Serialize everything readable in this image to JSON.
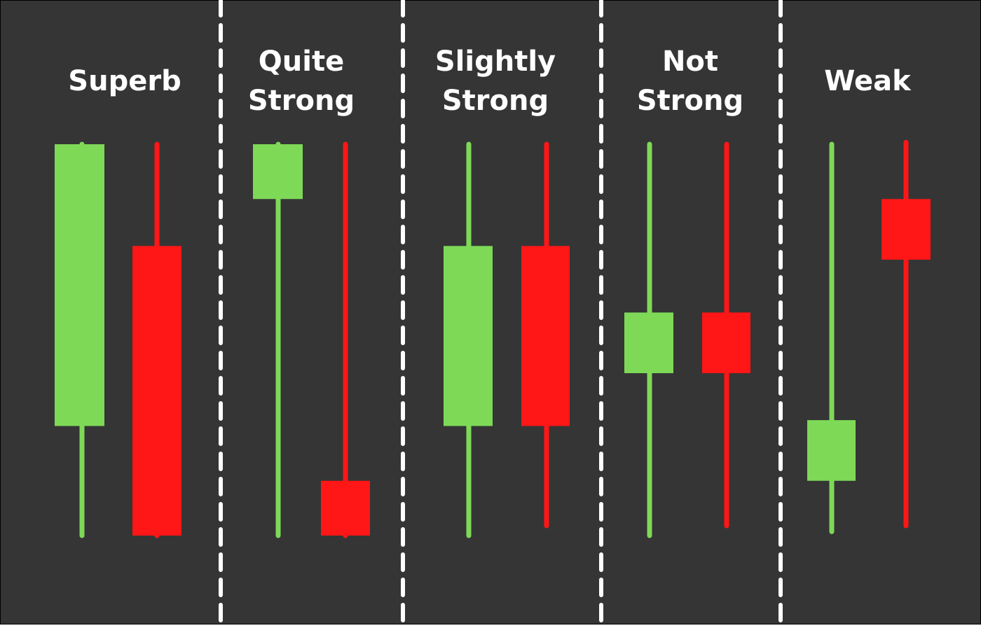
{
  "colors": {
    "background": "#353535",
    "border": "#000000",
    "divider": "#ffffff",
    "bullish": "#7ed957",
    "bearish": "#ff1616",
    "label": "#ffffff"
  },
  "groups": [
    {
      "label_lines": [
        "Superb"
      ],
      "candles": [
        {
          "color": "bullish",
          "high": 100,
          "body_top": 100,
          "body_bottom": 28,
          "low": 0
        },
        {
          "color": "bearish",
          "high": 100,
          "body_top": 74,
          "body_bottom": 0,
          "low": 0
        }
      ]
    },
    {
      "label_lines": [
        "Quite",
        "Strong"
      ],
      "candles": [
        {
          "color": "bullish",
          "high": 100,
          "body_top": 100,
          "body_bottom": 86,
          "low": 0
        },
        {
          "color": "bearish",
          "high": 100,
          "body_top": 14,
          "body_bottom": 0,
          "low": 0
        }
      ]
    },
    {
      "label_lines": [
        "Slightly",
        "Strong"
      ],
      "candles": [
        {
          "color": "bullish",
          "high": 100,
          "body_top": 74,
          "body_bottom": 28,
          "low": 0
        },
        {
          "color": "bearish",
          "high": 100,
          "body_top": 74,
          "body_bottom": 28,
          "low": 2.5
        }
      ]
    },
    {
      "label_lines": [
        "Not",
        "Strong"
      ],
      "candles": [
        {
          "color": "bullish",
          "high": 100,
          "body_top": 57,
          "body_bottom": 41.5,
          "low": 0
        },
        {
          "color": "bearish",
          "high": 100,
          "body_top": 57,
          "body_bottom": 41.5,
          "low": 2.5
        }
      ]
    },
    {
      "label_lines": [
        "Weak"
      ],
      "candles": [
        {
          "color": "bullish",
          "high": 100,
          "body_top": 29.5,
          "body_bottom": 14,
          "low": 1
        },
        {
          "color": "bearish",
          "high": 100.5,
          "body_top": 86,
          "body_bottom": 70.5,
          "low": 2.5
        }
      ]
    }
  ]
}
